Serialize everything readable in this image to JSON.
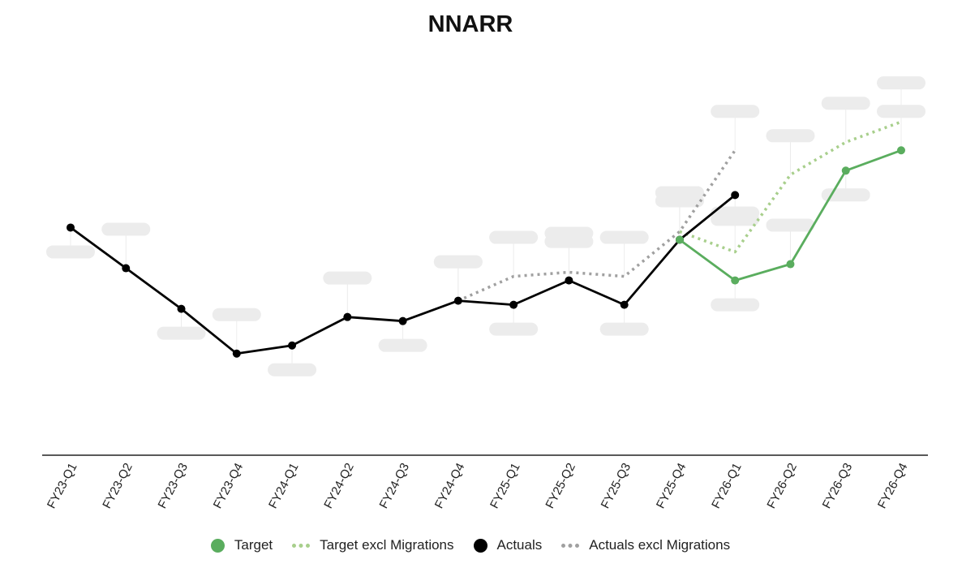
{
  "chart_data": {
    "type": "line",
    "title": "NNARR",
    "xlabel": "",
    "ylabel": "",
    "categories": [
      "FY23-Q1",
      "FY23-Q2",
      "FY23-Q3",
      "FY23-Q4",
      "FY24-Q1",
      "FY24-Q2",
      "FY24-Q3",
      "FY24-Q4",
      "FY25-Q1",
      "FY25-Q2",
      "FY25-Q3",
      "FY25-Q4",
      "FY26-Q1",
      "FY26-Q2",
      "FY26-Q3",
      "FY26-Q4"
    ],
    "ylim": [
      0,
      100
    ],
    "grid": false,
    "legend_position": "bottom",
    "series": [
      {
        "name": "Actuals",
        "style": "solid-markers",
        "color": "#000000",
        "values": [
          56,
          46,
          36,
          25,
          27,
          34,
          33,
          38,
          37,
          43,
          37,
          53,
          64,
          null,
          null,
          null
        ]
      },
      {
        "name": "Actuals excl Migrations",
        "style": "dotted",
        "color": "#a0a0a0",
        "values": [
          null,
          null,
          null,
          null,
          null,
          null,
          null,
          38,
          44,
          45,
          44,
          55,
          75,
          null,
          null,
          null
        ]
      },
      {
        "name": "Target",
        "style": "solid-markers",
        "color": "#5aad5e",
        "values": [
          null,
          null,
          null,
          null,
          null,
          null,
          null,
          null,
          null,
          null,
          null,
          53,
          43,
          47,
          70,
          75
        ]
      },
      {
        "name": "Target excl Migrations",
        "style": "dotted",
        "color": "#a8cf8c",
        "values": [
          null,
          null,
          null,
          null,
          null,
          null,
          null,
          null,
          null,
          null,
          null,
          55,
          50,
          69,
          77,
          82
        ]
      }
    ]
  },
  "legend": {
    "target": "Target",
    "target_excl": "Target excl Migrations",
    "actuals": "Actuals",
    "actuals_excl": "Actuals excl Migrations"
  },
  "colors": {
    "actuals": "#000000",
    "actuals_excl": "#a0a0a0",
    "target": "#5aad5e",
    "target_excl": "#a8cf8c"
  }
}
